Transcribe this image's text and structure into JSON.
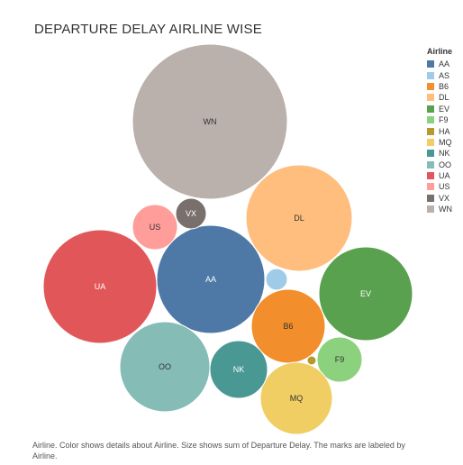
{
  "chart_data": {
    "type": "bubble",
    "title": "DEPARTURE DELAY AIRLINE WISE",
    "legend_title": "Airline",
    "legend_position": "right",
    "caption": "Airline.  Color shows details about Airline.  Size shows sum of Departure Delay.  The marks are labeled by Airline.",
    "series": [
      {
        "name": "AA",
        "color": "#4e79a7",
        "relative_size": 0.49,
        "label_color": "#ffffff"
      },
      {
        "name": "AS",
        "color": "#a0cbe8",
        "relative_size": 0.016,
        "label_color": ""
      },
      {
        "name": "B6",
        "color": "#f28e2b",
        "relative_size": 0.21,
        "label_color": "#333333"
      },
      {
        "name": "DL",
        "color": "#ffbe7d",
        "relative_size": 0.46,
        "label_color": "#333333"
      },
      {
        "name": "EV",
        "color": "#59a14f",
        "relative_size": 0.35,
        "label_color": "#ffffff"
      },
      {
        "name": "F9",
        "color": "#8cd17d",
        "relative_size": 0.09,
        "label_color": "#333333"
      },
      {
        "name": "HA",
        "color": "#b6992d",
        "relative_size": 0.003,
        "label_color": ""
      },
      {
        "name": "MQ",
        "color": "#f1ce63",
        "relative_size": 0.19,
        "label_color": "#333333"
      },
      {
        "name": "NK",
        "color": "#499894",
        "relative_size": 0.13,
        "label_color": "#ffffff"
      },
      {
        "name": "OO",
        "color": "#86bcb6",
        "relative_size": 0.32,
        "label_color": "#333333"
      },
      {
        "name": "UA",
        "color": "#e15759",
        "relative_size": 0.52,
        "label_color": "#ffffff"
      },
      {
        "name": "US",
        "color": "#ff9d9a",
        "relative_size": 0.08,
        "label_color": "#333333"
      },
      {
        "name": "VX",
        "color": "#79706e",
        "relative_size": 0.04,
        "label_color": "#ffffff"
      },
      {
        "name": "WN",
        "color": "#bab0ac",
        "relative_size": 1.0,
        "label_color": "#333333"
      }
    ]
  }
}
